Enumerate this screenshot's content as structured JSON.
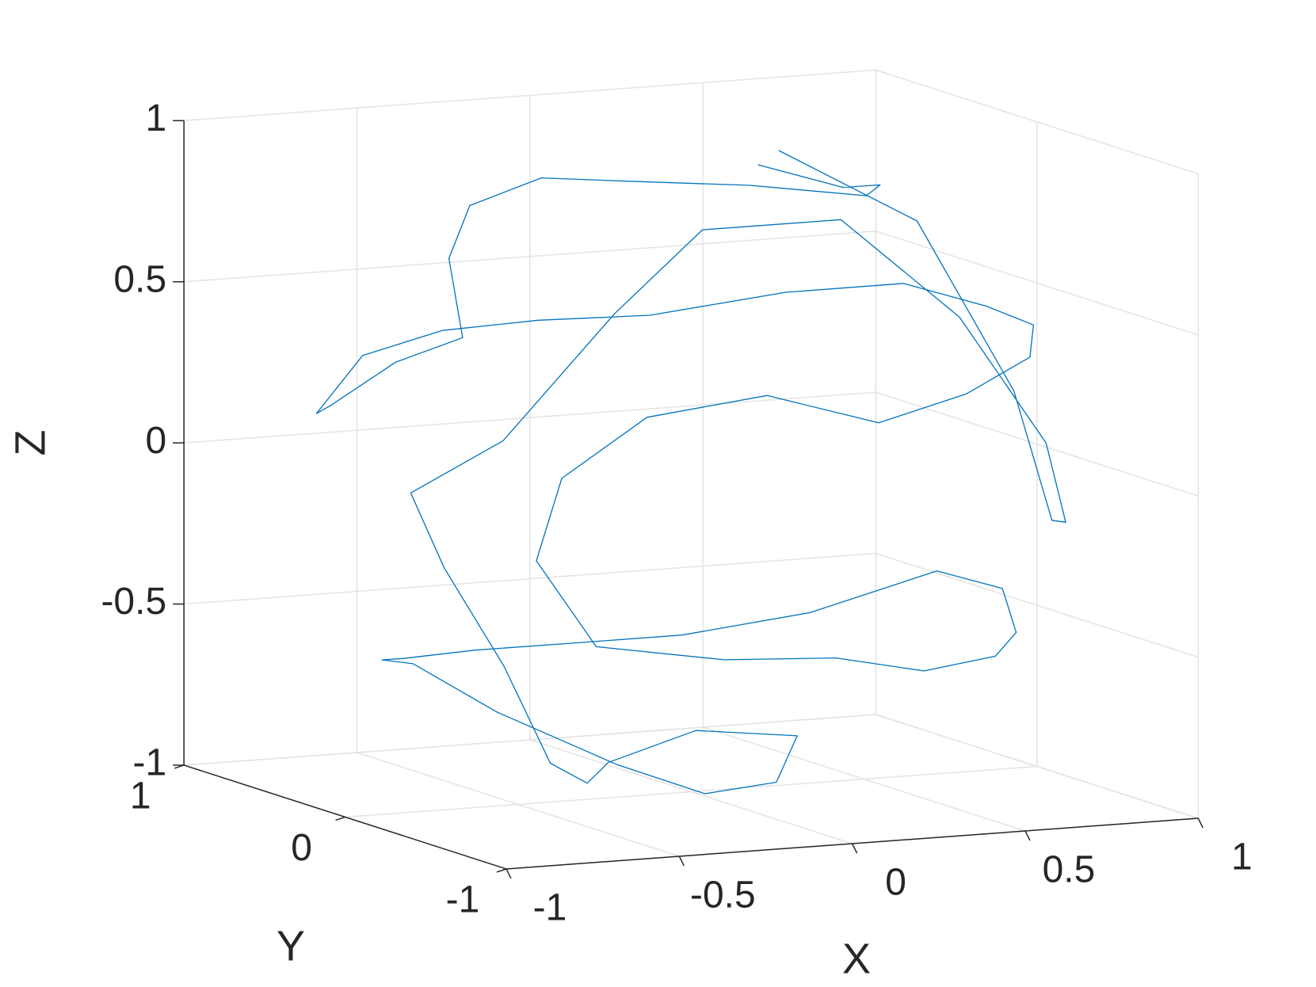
{
  "chart_data": {
    "type": "line3d",
    "xlabel": "X",
    "ylabel": "Y",
    "zlabel": "Z",
    "xlim": [
      -1,
      1
    ],
    "ylim": [
      -1,
      1
    ],
    "zlim": [
      -1,
      1
    ],
    "xticks": [
      -1,
      -0.5,
      0,
      0.5,
      1
    ],
    "yticks": [
      -1,
      0,
      1
    ],
    "zticks": [
      -1,
      -0.5,
      0,
      0.5,
      1
    ],
    "grid": true,
    "color": "#0072bd",
    "x": [
      0.1,
      0.3,
      0.5,
      0.6,
      0.4,
      0.1,
      -0.2,
      -0.5,
      -0.7,
      -0.8,
      -0.9,
      -0.95,
      -0.85,
      -0.6,
      -0.3,
      0.0,
      0.3,
      0.6,
      0.8,
      0.9,
      0.85,
      0.7,
      0.4,
      0.1,
      -0.2,
      -0.5,
      -0.7,
      -0.75,
      -0.6,
      -0.3,
      0.0,
      0.3,
      0.6,
      0.8,
      0.9,
      0.85,
      0.6,
      0.3,
      0.0,
      -0.3,
      -0.6,
      -0.8,
      -0.85,
      -0.7,
      -0.4,
      -0.1,
      0.2,
      0.4,
      0.2,
      -0.1,
      -0.3,
      -0.5,
      -0.75,
      -0.9,
      -0.95,
      -0.8,
      -0.5,
      -0.2,
      0.2,
      0.45,
      0.7,
      0.85,
      0.95,
      0.98,
      0.7,
      0.3
    ],
    "y": [
      -0.2,
      -0.3,
      -0.1,
      0.2,
      0.5,
      0.6,
      0.5,
      0.3,
      0.0,
      -0.3,
      -0.1,
      0.2,
      0.5,
      0.75,
      0.9,
      0.95,
      0.9,
      0.7,
      0.4,
      0.1,
      -0.3,
      -0.6,
      -0.85,
      -0.95,
      -0.9,
      -0.8,
      -0.7,
      -0.65,
      -0.7,
      -0.85,
      -0.9,
      -0.8,
      -0.6,
      -0.3,
      0.0,
      0.3,
      0.55,
      0.7,
      0.75,
      0.7,
      0.5,
      0.2,
      -0.1,
      -0.3,
      -0.4,
      -0.3,
      -0.1,
      0.2,
      0.4,
      0.3,
      0.0,
      -0.2,
      -0.45,
      -0.4,
      -0.3,
      -0.55,
      -0.6,
      -0.5,
      -0.5,
      -0.7,
      -0.7,
      -0.5,
      -0.2,
      0.1,
      0.1,
      0.1
    ],
    "z": [
      0.97,
      0.9,
      0.86,
      0.77,
      0.77,
      0.79,
      0.84,
      0.81,
      0.71,
      0.52,
      0.42,
      0.24,
      0.16,
      0.28,
      0.31,
      0.31,
      0.31,
      0.39,
      0.45,
      0.42,
      0.43,
      0.39,
      0.34,
      0.29,
      0.39,
      0.33,
      0.14,
      -0.12,
      -0.39,
      -0.43,
      -0.44,
      -0.52,
      -0.53,
      -0.52,
      -0.44,
      -0.43,
      -0.58,
      -0.65,
      -0.66,
      -0.65,
      -0.62,
      -0.56,
      -0.52,
      -0.65,
      -0.82,
      -0.95,
      -0.97,
      -0.89,
      -0.89,
      -0.95,
      -0.95,
      -0.84,
      -0.48,
      -0.17,
      0.05,
      0.24,
      0.62,
      0.84,
      0.84,
      0.55,
      0.14,
      -0.15,
      -0.2,
      0.15,
      0.7,
      0.95
    ]
  }
}
